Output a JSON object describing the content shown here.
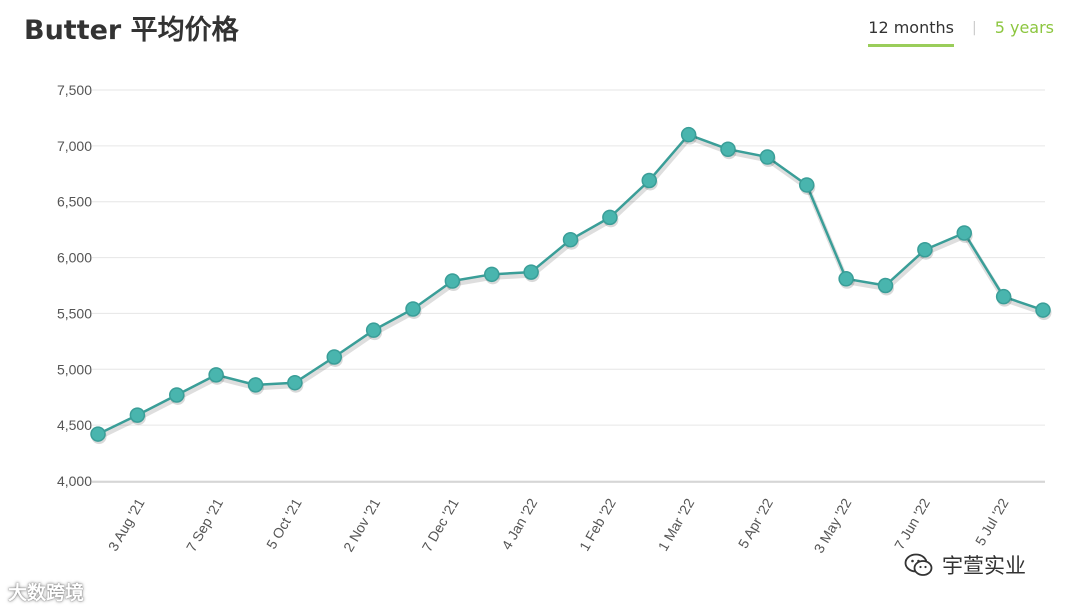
{
  "header": {
    "title": "Butter 平均价格",
    "tabs": [
      {
        "label": "12 months",
        "active": true
      },
      {
        "label": "5 years",
        "active": false
      }
    ]
  },
  "colors": {
    "line": "#3a9e98",
    "marker": "#49b5ae",
    "grid": "#e6e6e6",
    "tab_underline": "#9acd5a",
    "tab_inactive": "#8cc63f"
  },
  "watermarks": {
    "left": "大数跨境",
    "right": "宇萱实业",
    "right_icon": "wechat-icon"
  },
  "chart_data": {
    "type": "line",
    "title": "Butter 平均价格",
    "xlabel": "",
    "ylabel": "",
    "ylim": [
      4000,
      7500
    ],
    "yticks": [
      4000,
      4500,
      5000,
      5500,
      6000,
      6500,
      7000,
      7500
    ],
    "ytick_labels": [
      "4,000",
      "4,500",
      "5,000",
      "5,500",
      "6,000",
      "6,500",
      "7,000",
      "7,500"
    ],
    "xtick_labels": [
      "3 Aug '21",
      "7 Sep '21",
      "5 Oct '21",
      "2 Nov '21",
      "7 Dec '21",
      "4 Jan '22",
      "1 Feb '22",
      "1 Mar '22",
      "5 Apr '22",
      "3 May '22",
      "7 Jun '22",
      "5 Jul '22"
    ],
    "grid": true,
    "legend": false,
    "series": [
      {
        "values": [
          4420,
          4590,
          4770,
          4950,
          4860,
          4880,
          5110,
          5350,
          5540,
          5790,
          5850,
          5870,
          6160,
          6360,
          6690,
          7100,
          6970,
          6900,
          6650,
          5810,
          5750,
          6070,
          6220,
          5650,
          5530
        ]
      }
    ]
  }
}
